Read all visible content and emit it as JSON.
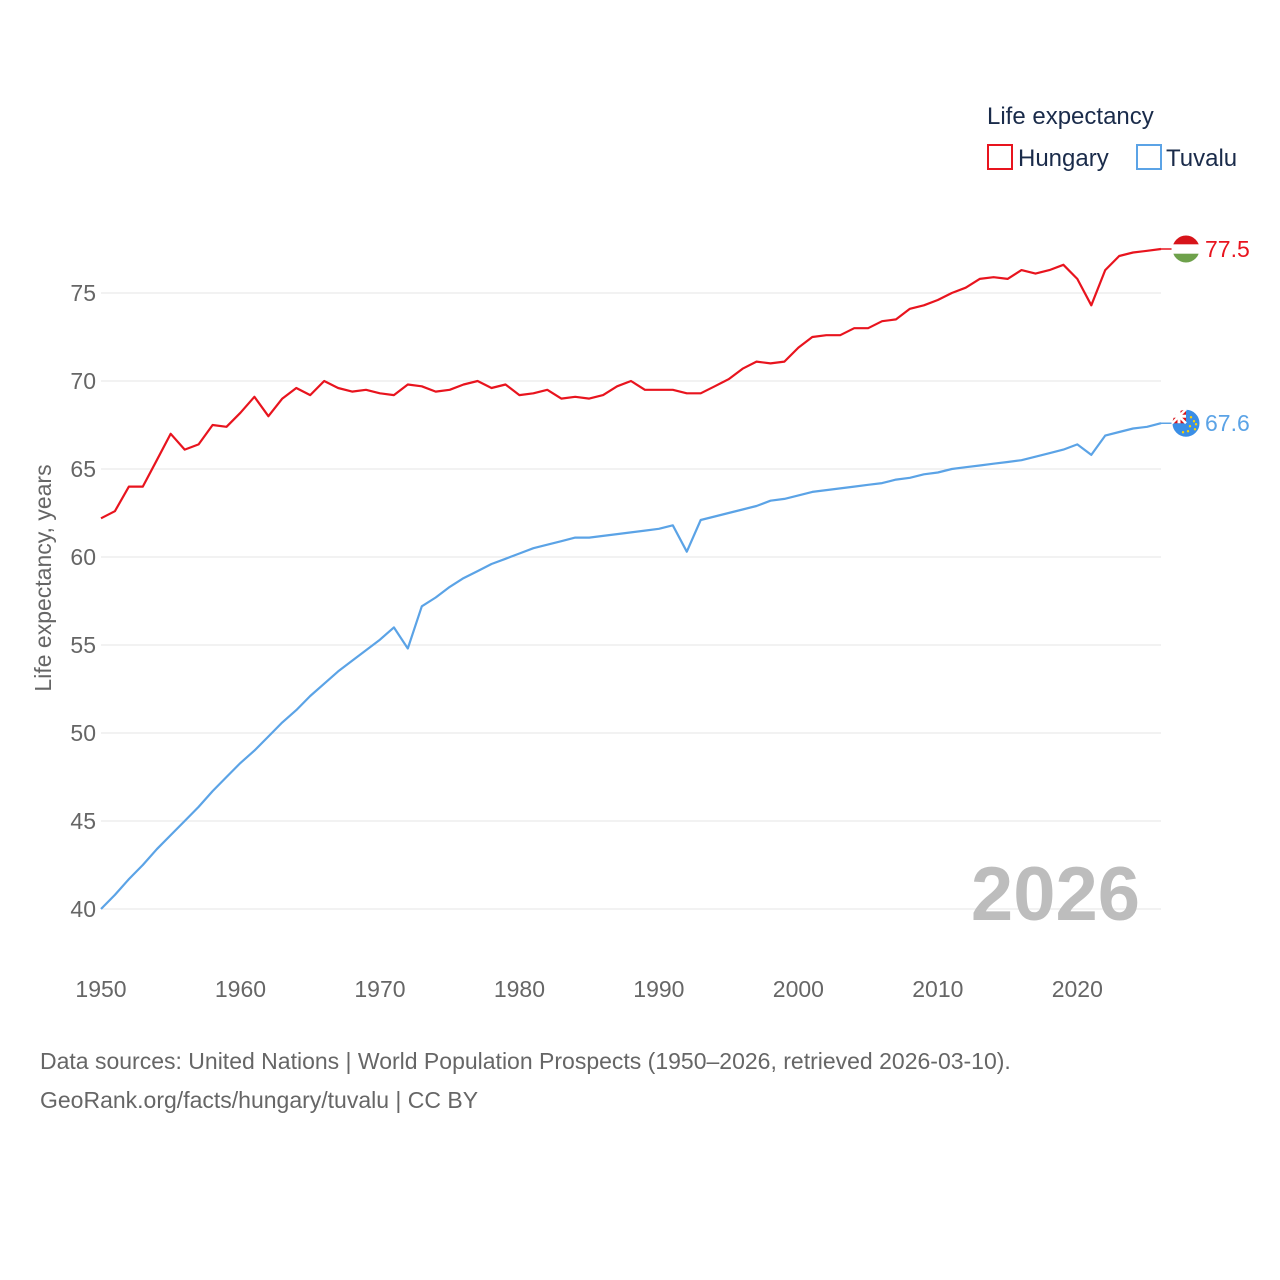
{
  "chart_data": {
    "type": "line",
    "ylabel": "Life expectancy, years",
    "xlabel": "",
    "xlim": [
      1950,
      2026
    ],
    "ylim": [
      38.5,
      79.5
    ],
    "x_ticks": [
      1950,
      1960,
      1970,
      1980,
      1990,
      2000,
      2010,
      2020
    ],
    "y_ticks": [
      40,
      45,
      50,
      55,
      60,
      65,
      70,
      75
    ],
    "legend_title": "Life expectancy",
    "legend_position": "top-right",
    "year_watermark": "2026",
    "x": [
      1950,
      1951,
      1952,
      1953,
      1954,
      1955,
      1956,
      1957,
      1958,
      1959,
      1960,
      1961,
      1962,
      1963,
      1964,
      1965,
      1966,
      1967,
      1968,
      1969,
      1970,
      1971,
      1972,
      1973,
      1974,
      1975,
      1976,
      1977,
      1978,
      1979,
      1980,
      1981,
      1982,
      1983,
      1984,
      1985,
      1986,
      1987,
      1988,
      1989,
      1990,
      1991,
      1992,
      1993,
      1994,
      1995,
      1996,
      1997,
      1998,
      1999,
      2000,
      2001,
      2002,
      2003,
      2004,
      2005,
      2006,
      2007,
      2008,
      2009,
      2010,
      2011,
      2012,
      2013,
      2014,
      2015,
      2016,
      2017,
      2018,
      2019,
      2020,
      2021,
      2022,
      2023,
      2024,
      2025,
      2026
    ],
    "series": [
      {
        "name": "Hungary",
        "color": "#e8141e",
        "end_label": "77.5",
        "flag": "hungary-flag",
        "values": [
          62.2,
          62.6,
          64.0,
          64.0,
          65.5,
          67.0,
          66.1,
          66.4,
          67.5,
          67.4,
          68.2,
          69.1,
          68.0,
          69.0,
          69.6,
          69.2,
          70.0,
          69.6,
          69.4,
          69.5,
          69.3,
          69.2,
          69.8,
          69.7,
          69.4,
          69.5,
          69.8,
          70.0,
          69.6,
          69.8,
          69.2,
          69.3,
          69.5,
          69.0,
          69.1,
          69.0,
          69.2,
          69.7,
          70.0,
          69.5,
          69.5,
          69.5,
          69.3,
          69.3,
          69.7,
          70.1,
          70.7,
          71.1,
          71.0,
          71.1,
          71.9,
          72.5,
          72.6,
          72.6,
          73.0,
          73.0,
          73.4,
          73.5,
          74.1,
          74.3,
          74.6,
          75.0,
          75.3,
          75.8,
          75.9,
          75.8,
          76.3,
          76.1,
          76.3,
          76.6,
          75.8,
          74.3,
          76.3,
          77.1,
          77.3,
          77.4,
          77.5
        ]
      },
      {
        "name": "Tuvalu",
        "color": "#5ba3e6",
        "end_label": "67.6",
        "flag": "tuvalu-flag",
        "values": [
          40.0,
          40.8,
          41.7,
          42.5,
          43.4,
          44.2,
          45.0,
          45.8,
          46.7,
          47.5,
          48.3,
          49.0,
          49.8,
          50.6,
          51.3,
          52.1,
          52.8,
          53.5,
          54.1,
          54.7,
          55.3,
          56.0,
          54.8,
          57.2,
          57.7,
          58.3,
          58.8,
          59.2,
          59.6,
          59.9,
          60.2,
          60.5,
          60.7,
          60.9,
          61.1,
          61.1,
          61.2,
          61.3,
          61.4,
          61.5,
          61.6,
          61.8,
          60.3,
          62.1,
          62.3,
          62.5,
          62.7,
          62.9,
          63.2,
          63.3,
          63.5,
          63.7,
          63.8,
          63.9,
          64.0,
          64.1,
          64.2,
          64.4,
          64.5,
          64.7,
          64.8,
          65.0,
          65.1,
          65.2,
          65.3,
          65.4,
          65.5,
          65.7,
          65.9,
          66.1,
          66.4,
          65.8,
          66.9,
          67.1,
          67.3,
          67.4,
          67.6
        ]
      }
    ]
  },
  "footer": {
    "line1": "Data sources: United Nations | World Population Prospects (1950–2026, retrieved 2026-03-10).",
    "line2": "GeoRank.org/facts/hungary/tuvalu | CC BY"
  }
}
